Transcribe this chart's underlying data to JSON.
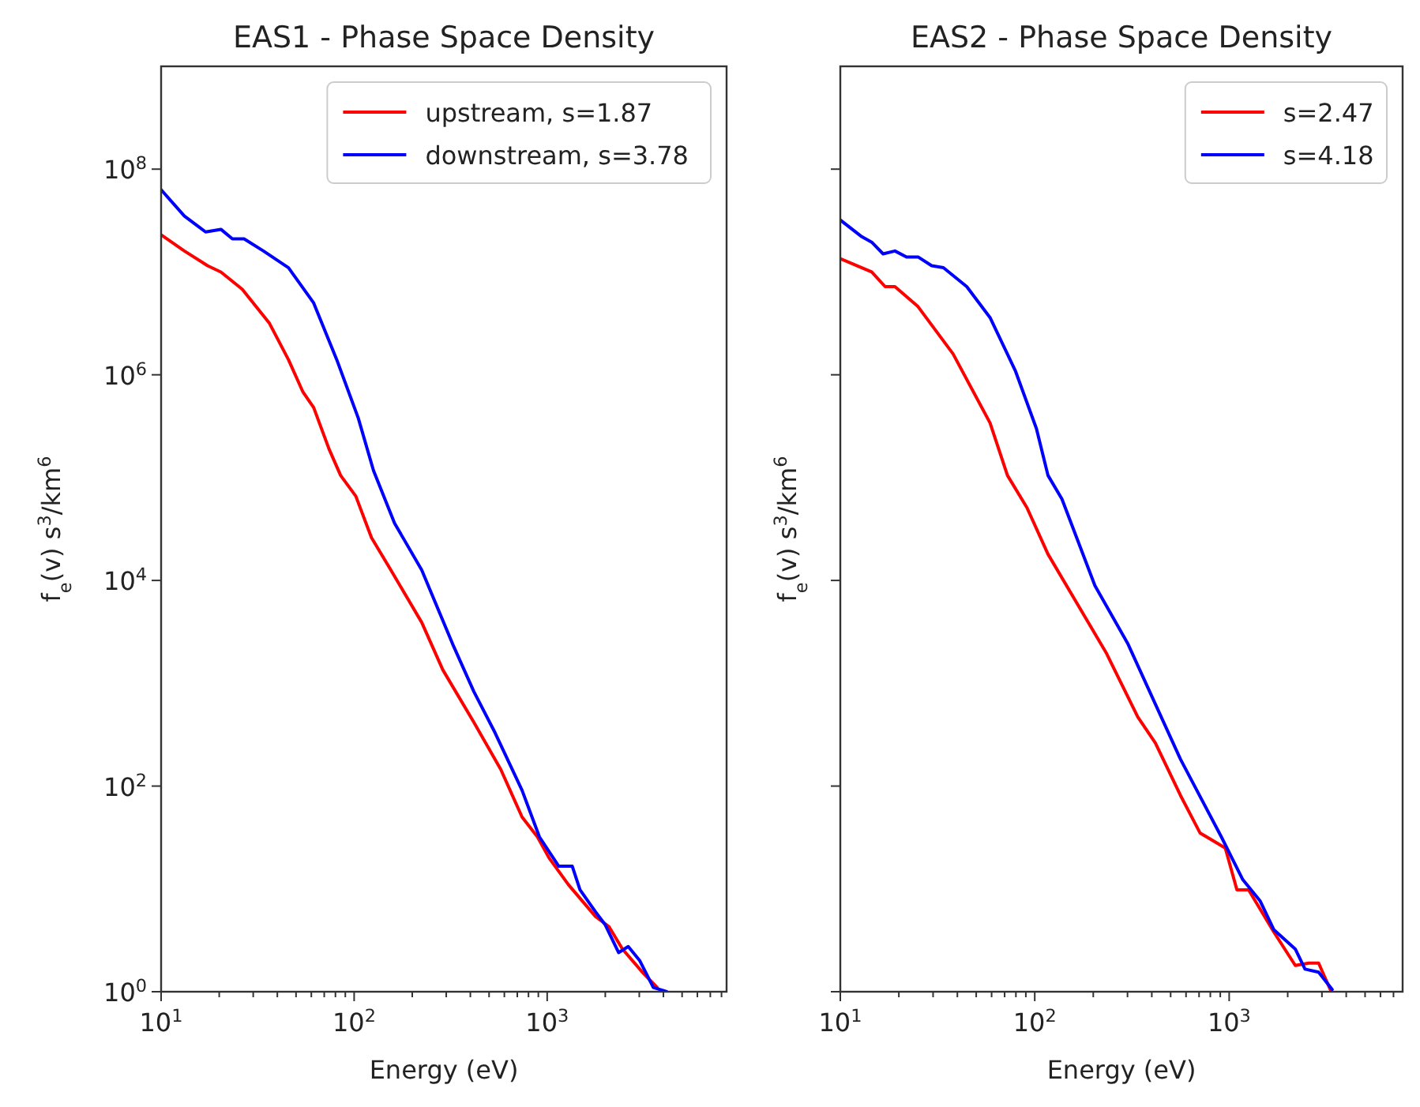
{
  "chart_data": [
    {
      "type": "line",
      "title": "EAS1 - Phase Space Density",
      "xlabel": "Energy (eV)",
      "ylabel": "f$_{e}$(v) s$^{3}$/km$^{6}$",
      "log": "xy",
      "legend": "top right",
      "xlim": [
        10,
        8500
      ],
      "ylim": [
        1,
        1000000000
      ],
      "xticks": [
        {
          "value": 10,
          "label": "10$^{1}$"
        },
        {
          "value": 20,
          "label": null
        },
        {
          "value": 30,
          "label": null
        },
        {
          "value": 40,
          "label": null
        },
        {
          "value": 50,
          "label": null
        },
        {
          "value": 60,
          "label": null
        },
        {
          "value": 70,
          "label": null
        },
        {
          "value": 80,
          "label": null
        },
        {
          "value": 90,
          "label": null
        },
        {
          "value": 100,
          "label": "10$^{2}$"
        },
        {
          "value": 200,
          "label": null
        },
        {
          "value": 300,
          "label": null
        },
        {
          "value": 400,
          "label": null
        },
        {
          "value": 500,
          "label": null
        },
        {
          "value": 600,
          "label": null
        },
        {
          "value": 700,
          "label": null
        },
        {
          "value": 800,
          "label": null
        },
        {
          "value": 900,
          "label": null
        },
        {
          "value": 1000,
          "label": "10$^{3}$"
        },
        {
          "value": 2000,
          "label": null
        },
        {
          "value": 3000,
          "label": null
        },
        {
          "value": 4000,
          "label": null
        },
        {
          "value": 5000,
          "label": null
        },
        {
          "value": 6000,
          "label": null
        },
        {
          "value": 7000,
          "label": null
        },
        {
          "value": 8000,
          "label": null
        }
      ],
      "yticks": [
        {
          "value": 1,
          "label": "10$^{0}$"
        },
        {
          "value": 100,
          "label": "10$^{2}$"
        },
        {
          "value": 10000,
          "label": "10$^{4}$"
        },
        {
          "value": 1000000,
          "label": "10$^{6}$"
        },
        {
          "value": 100000000,
          "label": "10$^{8}$"
        }
      ],
      "series": [
        {
          "name": "upstream, s=1.87",
          "color": "#ff0000",
          "x": [
            10,
            13.2,
            17.4,
            20.4,
            26.3,
            36.3,
            45.7,
            54.3,
            61.7,
            74.1,
            85.1,
            102,
            123,
            155,
            224,
            288,
            417,
            575,
            741,
            891,
            1023,
            1288,
            1778,
            2089,
            2455,
            3162,
            3715
          ],
          "values": [
            23000000,
            16000000,
            11500000,
            10000000,
            6800000,
            3200000,
            1400000,
            680000,
            480000,
            190000,
            105000,
            66000,
            26000,
            12600,
            3900,
            1350,
            417,
            145,
            50,
            32,
            20,
            11,
            5.4,
            4.3,
            2.6,
            1.5,
            1.1
          ]
        },
        {
          "name": "downstream, s=3.78",
          "color": "#0000ff",
          "x": [
            10,
            13.2,
            17,
            20.4,
            23.4,
            26.9,
            33.9,
            45.7,
            61.7,
            81.3,
            105,
            126,
            162,
            224,
            324,
            417,
            537,
            741,
            912,
            1148,
            1349,
            1479,
            1778,
            1995,
            2344,
            2630,
            3020,
            3548,
            4169
          ],
          "values": [
            63000000,
            35000000,
            24500000,
            26000000,
            21000000,
            21000000,
            16000000,
            11000000,
            5000000,
            1400000,
            380000,
            117000,
            36000,
            12600,
            2400,
            830,
            330,
            91,
            32,
            16.6,
            16.6,
            9.8,
            6,
            4.5,
            2.4,
            2.75,
            2,
            1.1,
            1
          ]
        }
      ]
    },
    {
      "type": "line",
      "title": "EAS2 - Phase Space Density",
      "xlabel": "Energy (eV)",
      "ylabel": "f$_{e}$(v) s$^{3}$/km$^{6}$",
      "log": "xy",
      "legend": "top right",
      "tick_labels": "x",
      "xlim": [
        10,
        7800
      ],
      "ylim": [
        1,
        1000000000
      ],
      "xticks": [
        {
          "value": 10,
          "label": "10$^{1}$"
        },
        {
          "value": 20,
          "label": null
        },
        {
          "value": 30,
          "label": null
        },
        {
          "value": 40,
          "label": null
        },
        {
          "value": 50,
          "label": null
        },
        {
          "value": 60,
          "label": null
        },
        {
          "value": 70,
          "label": null
        },
        {
          "value": 80,
          "label": null
        },
        {
          "value": 90,
          "label": null
        },
        {
          "value": 100,
          "label": "10$^{2}$"
        },
        {
          "value": 200,
          "label": null
        },
        {
          "value": 300,
          "label": null
        },
        {
          "value": 400,
          "label": null
        },
        {
          "value": 500,
          "label": null
        },
        {
          "value": 600,
          "label": null
        },
        {
          "value": 700,
          "label": null
        },
        {
          "value": 800,
          "label": null
        },
        {
          "value": 900,
          "label": null
        },
        {
          "value": 1000,
          "label": "10$^{3}$"
        },
        {
          "value": 2000,
          "label": null
        },
        {
          "value": 3000,
          "label": null
        },
        {
          "value": 4000,
          "label": null
        },
        {
          "value": 5000,
          "label": null
        },
        {
          "value": 6000,
          "label": null
        },
        {
          "value": 7000,
          "label": null
        }
      ],
      "yticks": [
        {
          "value": 1,
          "label": null
        },
        {
          "value": 100,
          "label": null
        },
        {
          "value": 10000,
          "label": null
        },
        {
          "value": 1000000,
          "label": null
        },
        {
          "value": 100000000,
          "label": null
        }
      ],
      "series": [
        {
          "name": "s=2.47",
          "color": "#ff0000",
          "x": [
            10,
            12.9,
            14.5,
            17,
            19.1,
            25.1,
            38,
            58.9,
            72.4,
            91.2,
            117,
            234,
            339,
            417,
            562,
            708,
            955,
            1096,
            1259,
            1698,
            2188,
            2570,
            2884,
            3311
          ],
          "values": [
            13500000,
            11000000,
            10000000,
            7200000,
            7200000,
            4600000,
            1600000,
            340000,
            105000,
            51000,
            18000,
            1950,
            470,
            263,
            81,
            35,
            25,
            9.8,
            9.8,
            3.8,
            1.8,
            1.9,
            1.9,
            1.05
          ]
        },
        {
          "name": "s=4.18",
          "color": "#0000ff",
          "x": [
            10,
            12.9,
            14.5,
            16.6,
            19.1,
            21.9,
            25.1,
            29.5,
            33.9,
            44.7,
            58.9,
            79.4,
            102,
            117,
            138,
            204,
            302,
            562,
            912,
            1175,
            1445,
            1698,
            2188,
            2455,
            2884,
            3388
          ],
          "values": [
            32000000,
            22000000,
            19500000,
            15000000,
            16000000,
            14000000,
            14000000,
            11500000,
            11000000,
            7200000,
            3600000,
            1100000,
            300000,
            105000,
            62000,
            8900,
            2400,
            182,
            32,
            12.3,
            7.6,
            4,
            2.6,
            1.66,
            1.55,
            1.05
          ]
        }
      ]
    }
  ]
}
